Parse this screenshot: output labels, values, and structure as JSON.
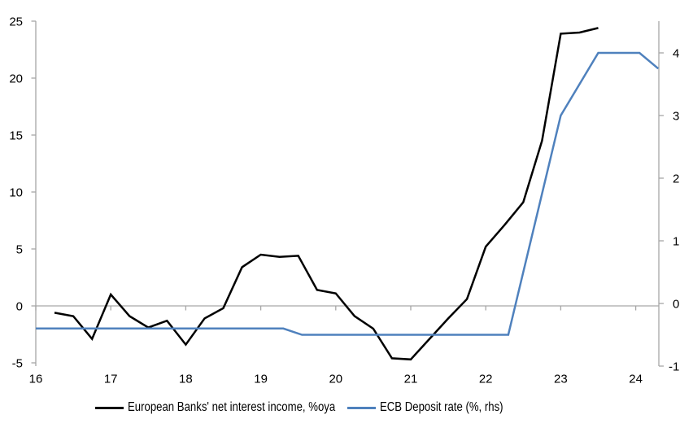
{
  "chart_data": {
    "type": "line",
    "title": "",
    "x_axis": {
      "ticks": [
        16,
        17,
        18,
        19,
        20,
        21,
        22,
        23,
        24
      ],
      "range": [
        16,
        24.31
      ]
    },
    "left_axis": {
      "ticks": [
        25,
        20,
        15,
        10,
        5,
        0,
        -5
      ],
      "range": [
        -5,
        25
      ]
    },
    "right_axis": {
      "ticks": [
        4,
        3,
        2,
        1,
        0,
        -1
      ],
      "range": [
        -1.1,
        4.5
      ]
    },
    "grid": "horizontal line at zero only, with year tick marks on it",
    "legend_position": "bottom",
    "series": [
      {
        "name": "European Banks' net interest income, %oya",
        "axis": "left",
        "color": "#000000",
        "points": [
          [
            16.25,
            -0.6
          ],
          [
            16.5,
            -0.9
          ],
          [
            16.75,
            -2.9
          ],
          [
            17.0,
            1.0
          ],
          [
            17.25,
            -0.9
          ],
          [
            17.5,
            -1.9
          ],
          [
            17.75,
            -1.3
          ],
          [
            18.0,
            -3.4
          ],
          [
            18.25,
            -1.1
          ],
          [
            18.5,
            -0.2
          ],
          [
            18.75,
            3.4
          ],
          [
            19.0,
            4.5
          ],
          [
            19.25,
            4.3
          ],
          [
            19.5,
            4.4
          ],
          [
            19.75,
            1.4
          ],
          [
            20.0,
            1.1
          ],
          [
            20.25,
            -0.9
          ],
          [
            20.5,
            -2.0
          ],
          [
            20.75,
            -4.6
          ],
          [
            21.0,
            -4.7
          ],
          [
            21.25,
            -2.9
          ],
          [
            21.5,
            -1.1
          ],
          [
            21.75,
            0.6
          ],
          [
            22.0,
            5.2
          ],
          [
            22.25,
            7.1
          ],
          [
            22.5,
            9.1
          ],
          [
            22.75,
            14.5
          ],
          [
            23.0,
            23.9
          ],
          [
            23.25,
            24.0
          ],
          [
            23.5,
            24.4
          ]
        ]
      },
      {
        "name": "ECB Deposit rate (%, rhs)",
        "axis": "right",
        "color": "#4f81bd",
        "points": [
          [
            16.0,
            -0.4
          ],
          [
            19.3,
            -0.4
          ],
          [
            19.55,
            -0.5
          ],
          [
            22.3,
            -0.5
          ],
          [
            23.0,
            3.0
          ],
          [
            23.5,
            4.0
          ],
          [
            24.05,
            4.0
          ],
          [
            24.3,
            3.75
          ]
        ]
      }
    ],
    "colors": {
      "axis": "#a6a6a6",
      "text": "#000000",
      "background": "#ffffff"
    }
  }
}
